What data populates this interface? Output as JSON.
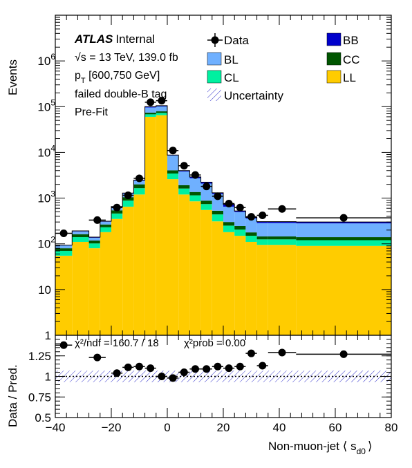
{
  "chart_data": {
    "type": "bar",
    "stacked": true,
    "x_edges": [
      -40,
      -34,
      -28,
      -24,
      -20,
      -16,
      -12,
      -8,
      -4,
      0,
      4,
      8,
      12,
      16,
      20,
      24,
      28,
      32,
      36,
      40,
      46,
      80
    ],
    "xlim": [
      -40,
      80
    ],
    "xlabel": "Non-muon-jet ⟨ s",
    "xlabel_sub": "d0",
    "xlabel_end": "⟩",
    "ylabel_top": "Events",
    "ylabel_bottom": "Data / Pred.",
    "top_ylim": [
      1,
      10000000
    ],
    "top_yscale": "log",
    "top_ytick_values": [
      1,
      10,
      100,
      1000,
      10000,
      100000,
      1000000
    ],
    "top_ytick_labels": [
      {
        "base": "1",
        "exp": ""
      },
      {
        "base": "10",
        "exp": ""
      },
      {
        "base": "10",
        "exp": "2"
      },
      {
        "base": "10",
        "exp": "3"
      },
      {
        "base": "10",
        "exp": "4"
      },
      {
        "base": "10",
        "exp": "5"
      },
      {
        "base": "10",
        "exp": "6"
      }
    ],
    "ratio_ylim": [
      0.5,
      1.5
    ],
    "ratio_ytick_values": [
      0.5,
      0.75,
      1,
      1.25
    ],
    "ratio_ytick_labels": [
      "0.5",
      "0.75",
      "1",
      "1.25"
    ],
    "xtick_values": [
      -40,
      -20,
      0,
      20,
      40,
      60,
      80
    ],
    "xtick_labels": [
      "−40",
      "−20",
      "0",
      "20",
      "40",
      "60",
      "80"
    ],
    "series": [
      {
        "name": "LL",
        "color": "#ffcc00",
        "values": [
          55,
          110,
          80,
          180,
          350,
          650,
          1200,
          60000,
          65000,
          2600,
          1200,
          850,
          550,
          310,
          180,
          150,
          110,
          95,
          95,
          95,
          90
        ]
      },
      {
        "name": "CL",
        "color": "#00f0a0",
        "values": [
          15,
          30,
          22,
          50,
          110,
          230,
          450,
          8000,
          8000,
          850,
          420,
          300,
          190,
          130,
          70,
          55,
          40,
          30,
          30,
          30,
          30
        ]
      },
      {
        "name": "CC",
        "color": "#005500",
        "values": [
          10,
          22,
          16,
          35,
          80,
          170,
          350,
          6000,
          6000,
          600,
          300,
          210,
          140,
          90,
          50,
          40,
          28,
          20,
          20,
          20,
          20
        ]
      },
      {
        "name": "BL",
        "color": "#6fb0ff",
        "values": [
          12,
          25,
          18,
          40,
          95,
          200,
          400,
          22000,
          22000,
          4500,
          1900,
          1350,
          1200,
          700,
          350,
          250,
          180,
          140,
          140,
          140,
          140
        ]
      },
      {
        "name": "BB",
        "color": "#0000cc",
        "values": [
          2,
          5,
          4,
          8,
          20,
          40,
          80,
          4000,
          4000,
          200,
          180,
          200,
          150,
          80,
          80,
          30,
          20,
          20,
          20,
          20,
          20
        ]
      }
    ],
    "data": {
      "name": "Data",
      "x": [
        -37,
        -25,
        -18,
        -14,
        -10,
        -6,
        -2,
        2,
        6,
        10,
        14,
        18,
        22,
        26,
        30,
        34,
        41,
        63
      ],
      "xerr_low": [
        3,
        3,
        2,
        2,
        2,
        2,
        2,
        2,
        2,
        2,
        2,
        2,
        2,
        2,
        2,
        2,
        5,
        17
      ],
      "xerr_high": [
        3,
        3,
        2,
        2,
        2,
        2,
        2,
        2,
        2,
        2,
        2,
        2,
        2,
        2,
        2,
        2,
        5,
        17
      ],
      "y": [
        170,
        330,
        620,
        1150,
        2700,
        125000,
        135000,
        11000,
        5100,
        3200,
        1800,
        1100,
        760,
        620,
        390,
        420,
        580,
        370
      ],
      "ratio": [
        1.38,
        1.23,
        1.04,
        1.11,
        1.12,
        1.1,
        1.0,
        0.98,
        1.05,
        1.09,
        1.09,
        1.12,
        1.1,
        1.12,
        1.28,
        1.13,
        1.29,
        1.27
      ]
    },
    "uncertainty": {
      "name": "Uncertainty",
      "ratio_band": [
        0.93,
        1.07
      ]
    },
    "legend_placement": "top",
    "legend": [
      "Data",
      "BB",
      "BL",
      "CC",
      "CL",
      "LL",
      "Uncertainty"
    ],
    "annotations": {
      "atlas": "ATLAS",
      "internal": "Internal",
      "energy": "√s = 13 TeV, 139.0 fb",
      "pt_main": "p",
      "pt_sub": "T",
      "pt_range": " [600,750 GeV]",
      "tag": "failed double-B tag",
      "fit": "Pre-Fit",
      "chi2_ndf": "χ²/ndf = 160.7 / 18",
      "chi2_prob": "χ²prob = 0.00"
    }
  },
  "colors": {
    "data": "#000000",
    "uncertainty_hatch": "#3333cc",
    "axis": "#000000"
  }
}
